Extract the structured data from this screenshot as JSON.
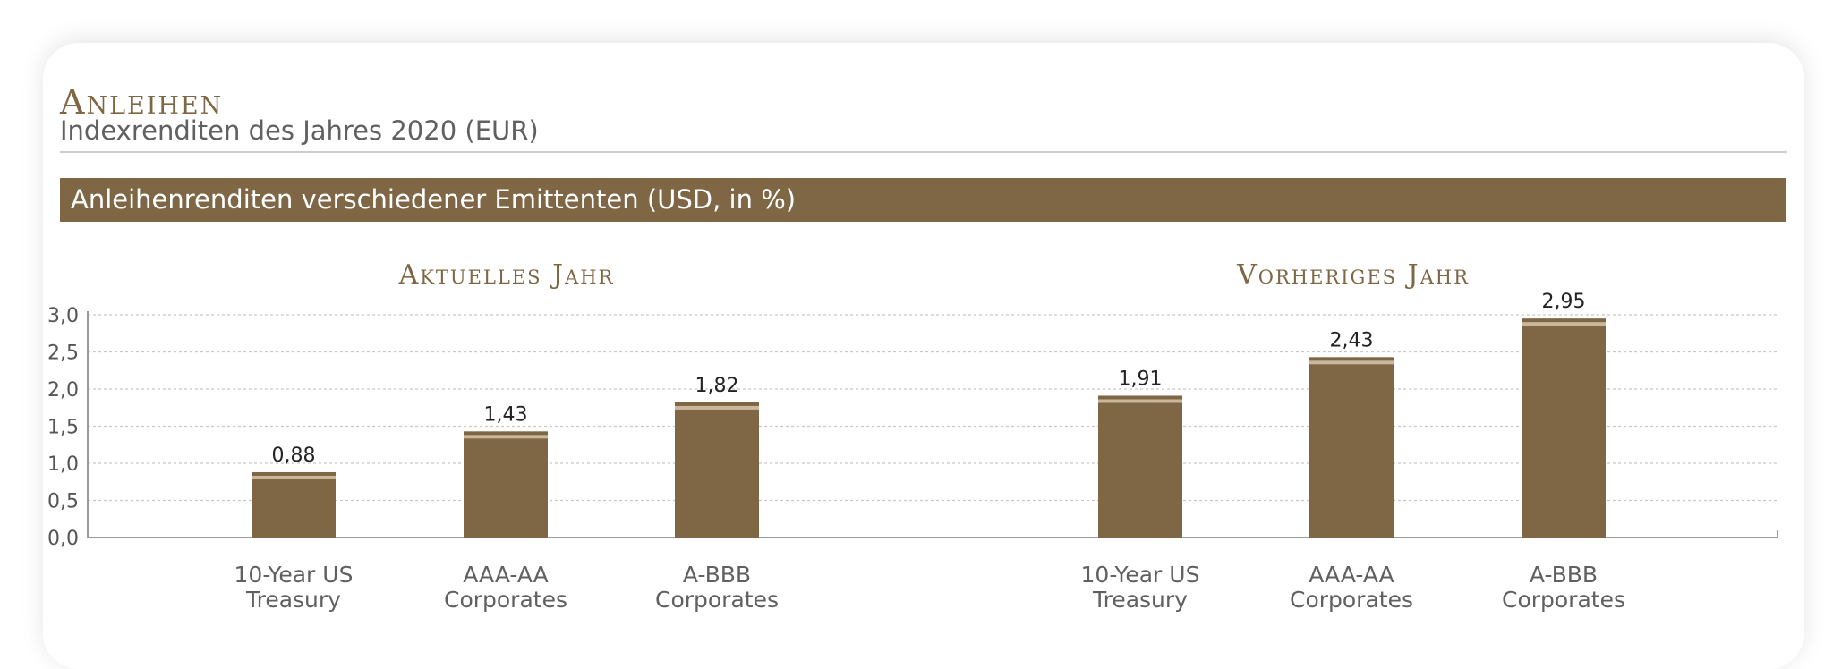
{
  "page": {
    "title": "Anleihen",
    "subtitle": "Indexrenditen des Jahres 2020 (EUR)",
    "banner": "Anleihenrenditen verschiedener Emittenten (USD, in %)"
  },
  "colors": {
    "accent": "#7f6746",
    "bar": "#7f6746",
    "bar_highlight": "#c9b89c",
    "grid": "#c8c8c8",
    "axis": "#9a9a9a",
    "text": "#555555"
  },
  "chart_data": [
    {
      "type": "bar",
      "title": "Aktuelles Jahr",
      "categories": [
        [
          "10-Year US",
          "Treasury"
        ],
        [
          "AAA-AA",
          "Corporates"
        ],
        [
          "A-BBB",
          "Corporates"
        ]
      ],
      "values": [
        0.88,
        1.43,
        1.82
      ],
      "value_labels": [
        "0,88",
        "1,43",
        "1,82"
      ],
      "ylim": [
        0,
        3.0
      ],
      "yticks": [
        "0,0",
        "0,5",
        "1,0",
        "1,5",
        "2,0",
        "2,5",
        "3,0"
      ],
      "grid": true,
      "legend": "none"
    },
    {
      "type": "bar",
      "title": "Vorheriges Jahr",
      "categories": [
        [
          "10-Year US",
          "Treasury"
        ],
        [
          "AAA-AA",
          "Corporates"
        ],
        [
          "A-BBB",
          "Corporates"
        ]
      ],
      "values": [
        1.91,
        2.43,
        2.95
      ],
      "value_labels": [
        "1,91",
        "2,43",
        "2,95"
      ],
      "ylim": [
        0,
        3.0
      ],
      "grid": true,
      "legend": "none"
    }
  ]
}
